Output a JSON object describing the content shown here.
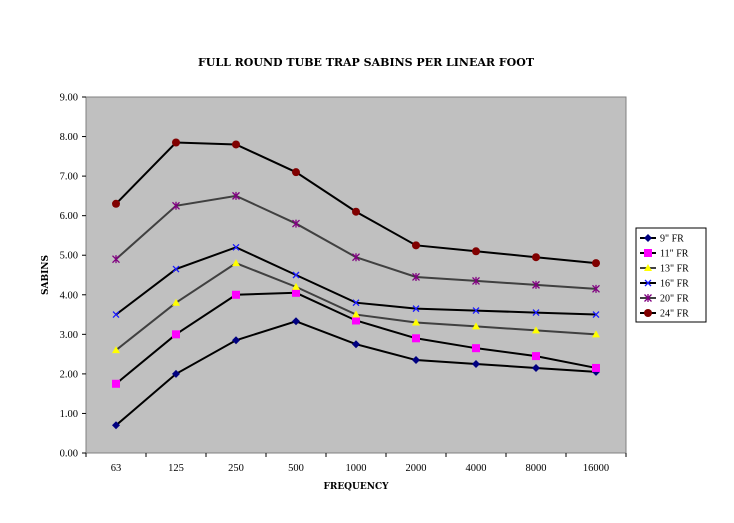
{
  "chart_data": {
    "type": "line",
    "title": "FULL ROUND TUBE TRAP SABINS PER LINEAR FOOT",
    "xlabel": "FREQUENCY",
    "ylabel": "SABINS",
    "categories": [
      "63",
      "125",
      "250",
      "500",
      "1000",
      "2000",
      "4000",
      "8000",
      "16000"
    ],
    "ylim": [
      0,
      9
    ],
    "yticks": [
      "0.00",
      "1.00",
      "2.00",
      "3.00",
      "4.00",
      "5.00",
      "6.00",
      "7.00",
      "8.00",
      "9.00"
    ],
    "grid": false,
    "legend_position": "right",
    "series": [
      {
        "name": "9\" FR",
        "color": "#000080",
        "marker": "diamond",
        "line": "#000000",
        "values": [
          0.7,
          2.0,
          2.85,
          3.33,
          2.75,
          2.35,
          2.25,
          2.15,
          2.05
        ]
      },
      {
        "name": "11\" FR",
        "color": "#ff00ff",
        "marker": "square",
        "line": "#000000",
        "values": [
          1.75,
          3.0,
          4.0,
          4.05,
          3.35,
          2.9,
          2.65,
          2.45,
          2.15
        ]
      },
      {
        "name": "13\" FR",
        "color": "#ffff00",
        "marker": "triangle",
        "line": "#404040",
        "values": [
          2.6,
          3.8,
          4.8,
          4.2,
          3.5,
          3.3,
          3.2,
          3.1,
          3.0
        ]
      },
      {
        "name": "16\" FR",
        "color": "#1a1aff",
        "marker": "x",
        "line": "#000000",
        "values": [
          3.5,
          4.65,
          5.2,
          4.5,
          3.8,
          3.65,
          3.6,
          3.55,
          3.5
        ]
      },
      {
        "name": "20\" FR",
        "color": "#800080",
        "marker": "star",
        "line": "#404040",
        "values": [
          4.9,
          6.25,
          6.5,
          5.8,
          4.95,
          4.45,
          4.35,
          4.25,
          4.15
        ]
      },
      {
        "name": "24\" FR",
        "color": "#800000",
        "marker": "circle",
        "line": "#000000",
        "values": [
          6.3,
          7.85,
          7.8,
          7.1,
          6.1,
          5.25,
          5.1,
          4.95,
          4.8
        ]
      }
    ]
  }
}
